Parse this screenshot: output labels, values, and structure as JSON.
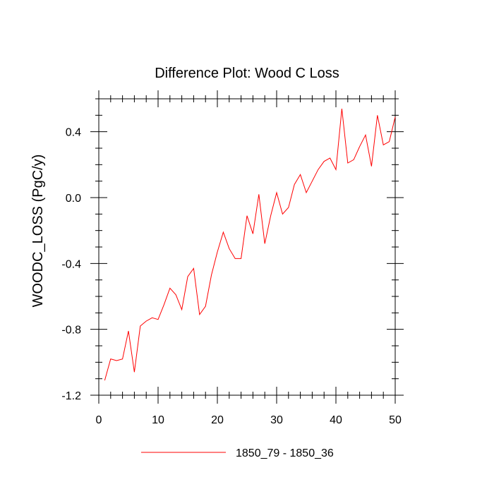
{
  "chart_data": {
    "type": "line",
    "title": "Difference Plot: Wood C Loss",
    "xlabel": "",
    "ylabel": "WOODC_LOSS  (PgC/y)",
    "xlim": [
      0,
      50
    ],
    "ylim": [
      -1.2,
      0.6
    ],
    "x_ticks": [
      0,
      10,
      20,
      30,
      40,
      50
    ],
    "y_ticks": [
      -1.2,
      -0.8,
      -0.4,
      0.0,
      0.4
    ],
    "x_tick_labels": [
      "0",
      "10",
      "20",
      "30",
      "40",
      "50"
    ],
    "y_tick_labels": [
      "-1.2",
      "-0.8",
      "-0.4",
      "0.0",
      "0.4"
    ],
    "legend_position": "bottom-center",
    "series": [
      {
        "name": "1850_79 - 1850_36",
        "color": "#ff0000",
        "x": [
          1,
          2,
          3,
          4,
          5,
          6,
          7,
          8,
          9,
          10,
          11,
          12,
          13,
          14,
          15,
          16,
          17,
          18,
          19,
          20,
          21,
          22,
          23,
          24,
          25,
          26,
          27,
          28,
          29,
          30,
          31,
          32,
          33,
          34,
          35,
          36,
          37,
          38,
          39,
          40,
          41,
          42,
          43,
          44,
          45,
          46,
          47,
          48,
          49,
          50
        ],
        "values": [
          -1.11,
          -0.98,
          -0.99,
          -0.98,
          -0.81,
          -1.06,
          -0.78,
          -0.75,
          -0.73,
          -0.74,
          -0.65,
          -0.55,
          -0.59,
          -0.68,
          -0.48,
          -0.43,
          -0.71,
          -0.66,
          -0.47,
          -0.33,
          -0.21,
          -0.31,
          -0.37,
          -0.37,
          -0.11,
          -0.22,
          0.02,
          -0.28,
          -0.11,
          0.03,
          -0.1,
          -0.06,
          0.08,
          0.14,
          0.03,
          0.1,
          0.17,
          0.22,
          0.24,
          0.17,
          0.54,
          0.21,
          0.23,
          0.31,
          0.38,
          0.19,
          0.5,
          0.32,
          0.34,
          0.49
        ]
      }
    ]
  }
}
